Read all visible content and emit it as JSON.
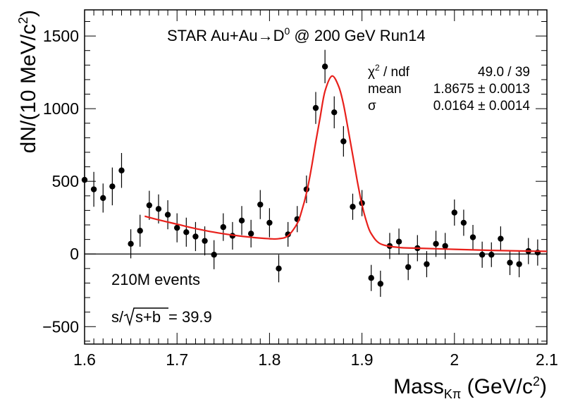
{
  "chart_data": {
    "type": "scatter",
    "title_parts": {
      "prefix": "STAR Au+Au",
      "arrow": "→",
      "particle": "D",
      "sup": "0",
      "suffix": " @ 200 GeV Run14"
    },
    "xlabel_parts": {
      "main": "Mass",
      "sub": "Kπ",
      "unit_open": " (GeV/c",
      "unit_sup": "2",
      "unit_close": ")"
    },
    "ylabel_parts": {
      "main": "dN/(10 MeV/c",
      "sup": "2",
      "close": ")"
    },
    "xlim": [
      1.6,
      2.1
    ],
    "ylim": [
      -620,
      1680
    ],
    "x_ticks": [
      1.6,
      1.7,
      1.8,
      1.9,
      2.0,
      2.1
    ],
    "x_tick_labels": [
      "1.6",
      "1.7",
      "1.8",
      "1.9",
      "2",
      "2.1"
    ],
    "y_ticks": [
      -500,
      0,
      500,
      1000,
      1500
    ],
    "y_tick_labels": [
      "−500",
      "0",
      "500",
      "1000",
      "1500"
    ],
    "zero_line": true,
    "stats": {
      "rows": [
        {
          "name_base": "χ",
          "name_sup": "2",
          "name_rest": " / ndf",
          "value": "49.0 / 39"
        },
        {
          "name_base": "mean",
          "name_sup": "",
          "name_rest": "",
          "value": "1.8675 ± 0.0013"
        },
        {
          "name_base": "σ",
          "name_sup": "",
          "name_rest": "",
          "value": "0.0164 ± 0.0014"
        }
      ]
    },
    "annotations": {
      "events": "210M events",
      "signif_prefix": "s/",
      "signif_rad": "s+b",
      "signif_value": " = 39.9"
    },
    "series": [
      {
        "x": [
          1.6,
          1.61,
          1.62,
          1.63,
          1.64,
          1.65,
          1.66,
          1.67,
          1.68,
          1.69,
          1.7,
          1.71,
          1.72,
          1.73,
          1.74,
          1.75,
          1.76,
          1.77,
          1.78,
          1.79,
          1.8,
          1.81,
          1.82,
          1.83,
          1.84,
          1.85,
          1.86,
          1.87,
          1.88,
          1.89,
          1.9,
          1.91,
          1.92,
          1.93,
          1.94,
          1.95,
          1.96,
          1.97,
          1.98,
          1.99,
          2.0,
          2.01,
          2.02,
          2.03,
          2.04,
          2.05,
          2.06,
          2.07,
          2.08,
          2.09
        ],
        "y": [
          510,
          445,
          385,
          465,
          575,
          70,
          160,
          335,
          310,
          270,
          180,
          150,
          120,
          90,
          -5,
          185,
          125,
          230,
          140,
          340,
          215,
          -100,
          135,
          240,
          445,
          1005,
          1290,
          975,
          775,
          325,
          350,
          -165,
          -205,
          55,
          85,
          -90,
          40,
          -70,
          70,
          55,
          285,
          215,
          115,
          -5,
          -5,
          105,
          -60,
          -70,
          20,
          10
        ],
        "err": [
          140,
          120,
          100,
          130,
          120,
          100,
          110,
          100,
          100,
          100,
          100,
          100,
          100,
          100,
          100,
          95,
          95,
          100,
          95,
          100,
          100,
          95,
          85,
          90,
          95,
          110,
          115,
          110,
          105,
          90,
          90,
          90,
          90,
          90,
          90,
          90,
          90,
          90,
          90,
          90,
          90,
          90,
          85,
          90,
          85,
          85,
          85,
          90,
          90,
          90
        ]
      }
    ],
    "fit": {
      "color": "#e8201b",
      "x": [
        1.665,
        1.68,
        1.7,
        1.72,
        1.74,
        1.76,
        1.78,
        1.8,
        1.81,
        1.82,
        1.83,
        1.835,
        1.84,
        1.845,
        1.85,
        1.855,
        1.86,
        1.8675,
        1.875,
        1.88,
        1.885,
        1.89,
        1.895,
        1.9,
        1.905,
        1.91,
        1.92,
        1.94,
        1.96,
        2.0,
        2.04,
        2.08,
        2.1
      ],
      "y": [
        260,
        235,
        205,
        175,
        150,
        130,
        115,
        105,
        105,
        125,
        210,
        300,
        420,
        580,
        770,
        950,
        1120,
        1225,
        1150,
        1030,
        860,
        680,
        500,
        340,
        220,
        140,
        70,
        45,
        40,
        32,
        25,
        20,
        18
      ]
    },
    "marker_color": "#000000"
  }
}
